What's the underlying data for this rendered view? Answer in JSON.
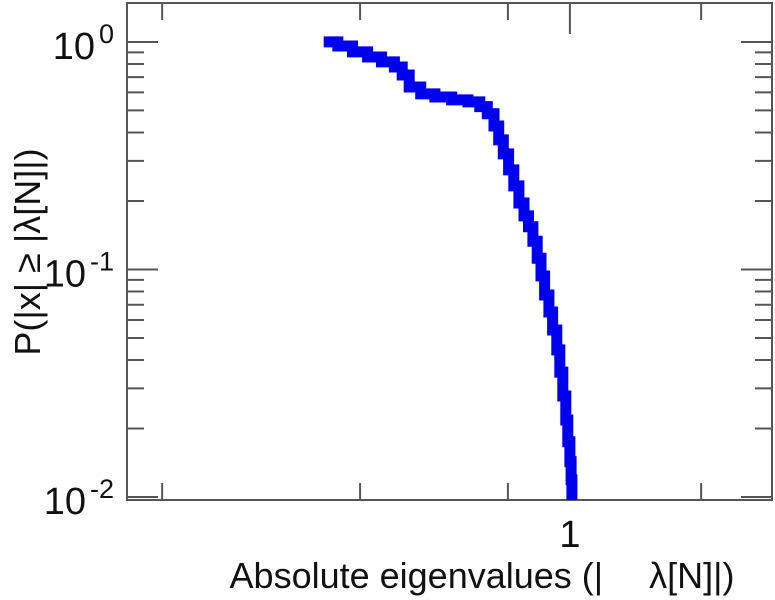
{
  "figure": {
    "background": "#ffffff"
  },
  "labels": {
    "ylabel": "P(|x| ≥ |λ[N]|)",
    "xlabel_part1": "Absolute eigenvalues (|",
    "xlabel_part2": "λ[N]|)"
  },
  "style": {
    "curve_color": "#0000ee",
    "axis_color": "#555555",
    "text_color": "#111111",
    "curve_width": 11
  },
  "chart_data": {
    "type": "line",
    "subtype": "empirical-ccdf-step",
    "title": "",
    "xlabel": "Absolute eigenvalues (|λ[N]|)",
    "ylabel": "P(|x| ≥ |λ[N]|)",
    "grid": false,
    "legend": false,
    "x_axis": {
      "scale": "log",
      "min": 0.471,
      "max": 1.41,
      "major_ticks": [
        {
          "value": 1,
          "label": "1"
        }
      ],
      "minor_tick_values": [
        0.5,
        0.7,
        0.9,
        1.25
      ]
    },
    "y_axis": {
      "scale": "log",
      "min": 0.0097,
      "max": 1.483,
      "major_ticks": [
        {
          "value": 1,
          "mantissa": "10",
          "exponent": "0",
          "label": "10^0"
        },
        {
          "value": 0.1,
          "mantissa": "10",
          "exponent": "-1",
          "label": "10^-1"
        },
        {
          "value": 0.01,
          "mantissa": "10",
          "exponent": "-2",
          "label": "10^-2"
        }
      ],
      "minor_tick_values": [
        0.9,
        0.8,
        0.7,
        0.6,
        0.5,
        0.4,
        0.3,
        0.2,
        0.09,
        0.08,
        0.07,
        0.06,
        0.05,
        0.04,
        0.03,
        0.02
      ]
    },
    "series": [
      {
        "step": "post",
        "color": "#0000ee",
        "line_width": 11,
        "points": [
          [
            0.658,
            1.0
          ],
          [
            0.674,
            0.96
          ],
          [
            0.691,
            0.904
          ],
          [
            0.709,
            0.859
          ],
          [
            0.726,
            0.817
          ],
          [
            0.742,
            0.776
          ],
          [
            0.752,
            0.716
          ],
          [
            0.761,
            0.634
          ],
          [
            0.776,
            0.591
          ],
          [
            0.795,
            0.573
          ],
          [
            0.818,
            0.556
          ],
          [
            0.841,
            0.545
          ],
          [
            0.858,
            0.52
          ],
          [
            0.869,
            0.483
          ],
          [
            0.879,
            0.427
          ],
          [
            0.886,
            0.371
          ],
          [
            0.893,
            0.322
          ],
          [
            0.901,
            0.274
          ],
          [
            0.909,
            0.233
          ],
          [
            0.917,
            0.196
          ],
          [
            0.925,
            0.172
          ],
          [
            0.932,
            0.154
          ],
          [
            0.939,
            0.133
          ],
          [
            0.946,
            0.112
          ],
          [
            0.952,
            0.0936
          ],
          [
            0.958,
            0.0772
          ],
          [
            0.965,
            0.065
          ],
          [
            0.971,
            0.0542
          ],
          [
            0.978,
            0.0443
          ],
          [
            0.983,
            0.0354
          ],
          [
            0.988,
            0.0278
          ],
          [
            0.993,
            0.0218
          ],
          [
            0.9965,
            0.0175
          ],
          [
            1.0,
            0.0143
          ],
          [
            1.002,
            0.0119
          ],
          [
            1.0035,
            0.0097
          ]
        ]
      }
    ]
  }
}
